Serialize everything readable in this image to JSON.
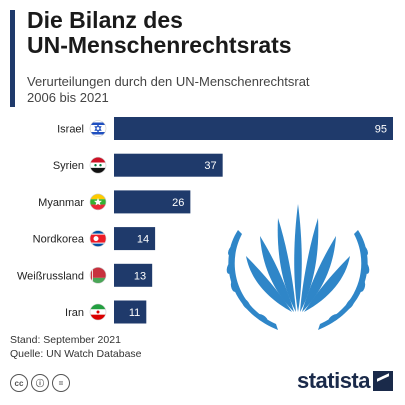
{
  "header": {
    "title_line1": "Die Bilanz des",
    "title_line2": "UN-Menschenrechtsrats",
    "subtitle_line1": "Verurteilungen durch den UN-Menschenrechtsrat",
    "subtitle_line2": "2006 bis 2021"
  },
  "chart_data": {
    "type": "bar",
    "orientation": "horizontal",
    "categories": [
      "Israel",
      "Syrien",
      "Myanmar",
      "Nordkorea",
      "Weißrussland",
      "Iran"
    ],
    "values": [
      95,
      37,
      26,
      14,
      13,
      11
    ],
    "xlim": [
      0,
      95
    ],
    "grid": false,
    "bar_color": "#1f3a6b"
  },
  "footer": {
    "stand": "Stand: September 2021",
    "quelle": "Quelle: UN Watch Database",
    "logo": "statista"
  },
  "colors": {
    "accent": "#1f3a6b",
    "un_emblem": "#2f86c8"
  }
}
